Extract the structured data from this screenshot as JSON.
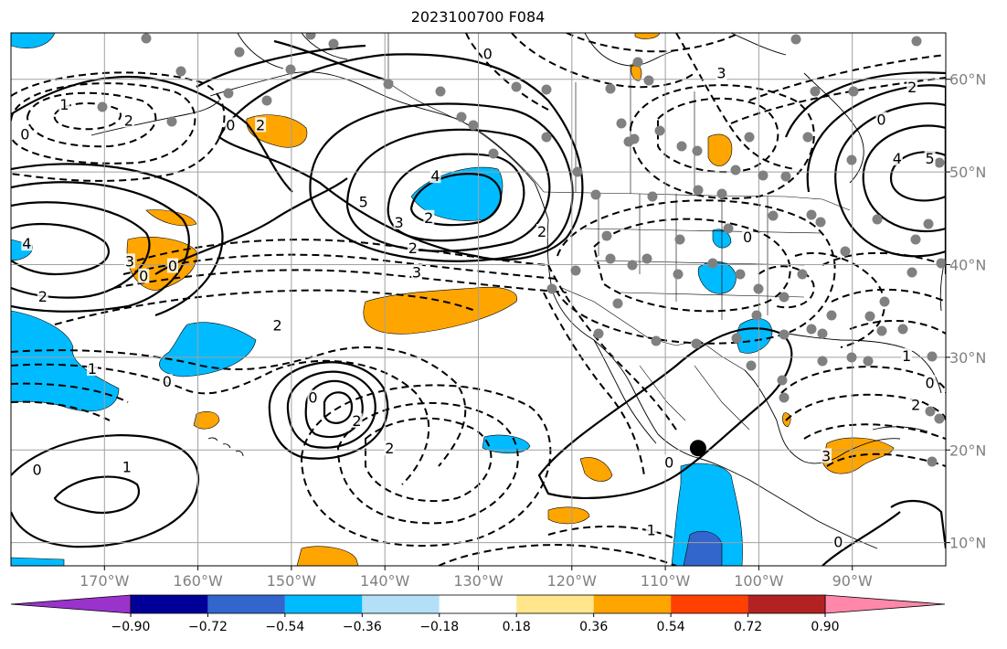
{
  "title": "2023100700 F084",
  "map": {
    "projection": "lat-lon",
    "lon_range": [
      -180,
      -80
    ],
    "lat_range": [
      7.5,
      65
    ],
    "lon_ticks": [
      {
        "value": -170,
        "label": "170°W"
      },
      {
        "value": -160,
        "label": "160°W"
      },
      {
        "value": -150,
        "label": "150°W"
      },
      {
        "value": -140,
        "label": "140°W"
      },
      {
        "value": -130,
        "label": "130°W"
      },
      {
        "value": -120,
        "label": "120°W"
      },
      {
        "value": -110,
        "label": "110°W"
      },
      {
        "value": -100,
        "label": "100°W"
      },
      {
        "value": -90,
        "label": "90°W"
      }
    ],
    "lat_ticks": [
      {
        "value": 10,
        "label": "10°N"
      },
      {
        "value": 20,
        "label": "20°N"
      },
      {
        "value": 30,
        "label": "30°N"
      },
      {
        "value": 40,
        "label": "40°N"
      },
      {
        "value": 50,
        "label": "50°N"
      },
      {
        "value": 60,
        "label": "60°N"
      }
    ],
    "grid": true,
    "marker": {
      "lon": -106.5,
      "lat": 20.2,
      "color": "#000000"
    }
  },
  "colorbar": {
    "orientation": "horizontal",
    "extend": "both",
    "colors": [
      "#9933cc",
      "#000099",
      "#3366cc",
      "#00bbff",
      "#b3e0f7",
      "#ffffff",
      "#ffe68c",
      "#ffa500",
      "#ff4000",
      "#b22222",
      "#ff88aa"
    ],
    "labels": [
      "−0.90",
      "−0.72",
      "−0.54",
      "−0.36",
      "−0.18",
      "0.18",
      "0.36",
      "0.54",
      "0.72",
      "0.90"
    ]
  },
  "contour_labels": [
    {
      "text": "1",
      "lon": -174.3,
      "lat": 57.2
    },
    {
      "text": "0",
      "lon": -178.5,
      "lat": 54.0
    },
    {
      "text": "2",
      "lon": -167.4,
      "lat": 55.5
    },
    {
      "text": "0",
      "lon": -156.5,
      "lat": 55.0
    },
    {
      "text": "2",
      "lon": -153.3,
      "lat": 55.0
    },
    {
      "text": "4",
      "lon": -134.6,
      "lat": 49.5
    },
    {
      "text": "5",
      "lon": -142.3,
      "lat": 46.7
    },
    {
      "text": "3",
      "lon": -138.5,
      "lat": 44.5
    },
    {
      "text": "2",
      "lon": -135.3,
      "lat": 45.0
    },
    {
      "text": "2",
      "lon": -123.2,
      "lat": 43.5
    },
    {
      "text": "4",
      "lon": -178.3,
      "lat": 42.2
    },
    {
      "text": "3",
      "lon": -167.3,
      "lat": 40.3
    },
    {
      "text": "0",
      "lon": -165.8,
      "lat": 38.7
    },
    {
      "text": "2",
      "lon": -176.6,
      "lat": 36.5
    },
    {
      "text": "0",
      "lon": -162.7,
      "lat": 39.8
    },
    {
      "text": "2",
      "lon": -137.0,
      "lat": 41.7
    },
    {
      "text": "3",
      "lon": -136.6,
      "lat": 39.1
    },
    {
      "text": "0",
      "lon": -129.0,
      "lat": 62.7
    },
    {
      "text": "3",
      "lon": -104.0,
      "lat": 60.6
    },
    {
      "text": "2",
      "lon": -83.6,
      "lat": 59.1
    },
    {
      "text": "0",
      "lon": -86.9,
      "lat": 55.6
    },
    {
      "text": "4",
      "lon": -85.2,
      "lat": 51.4
    },
    {
      "text": "5",
      "lon": -81.7,
      "lat": 51.4
    },
    {
      "text": "0",
      "lon": -101.2,
      "lat": 42.9
    },
    {
      "text": "0",
      "lon": -81.7,
      "lat": 27.2
    },
    {
      "text": "2",
      "lon": -151.5,
      "lat": 33.4
    },
    {
      "text": "1",
      "lon": -171.3,
      "lat": 28.7
    },
    {
      "text": "0",
      "lon": -163.3,
      "lat": 27.3
    },
    {
      "text": "0",
      "lon": -147.7,
      "lat": 25.6
    },
    {
      "text": "2",
      "lon": -143.0,
      "lat": 23.1
    },
    {
      "text": "2",
      "lon": -139.5,
      "lat": 20.1
    },
    {
      "text": "0",
      "lon": -177.2,
      "lat": 17.8
    },
    {
      "text": "1",
      "lon": -167.6,
      "lat": 18.1
    },
    {
      "text": "0",
      "lon": -109.6,
      "lat": 18.6
    },
    {
      "text": "1",
      "lon": -111.5,
      "lat": 11.3
    },
    {
      "text": "1",
      "lon": -84.2,
      "lat": 30.1
    },
    {
      "text": "2",
      "lon": -83.2,
      "lat": 24.8
    },
    {
      "text": "3",
      "lon": -92.8,
      "lat": 19.3
    },
    {
      "text": "0",
      "lon": -91.5,
      "lat": 10.0
    }
  ]
}
